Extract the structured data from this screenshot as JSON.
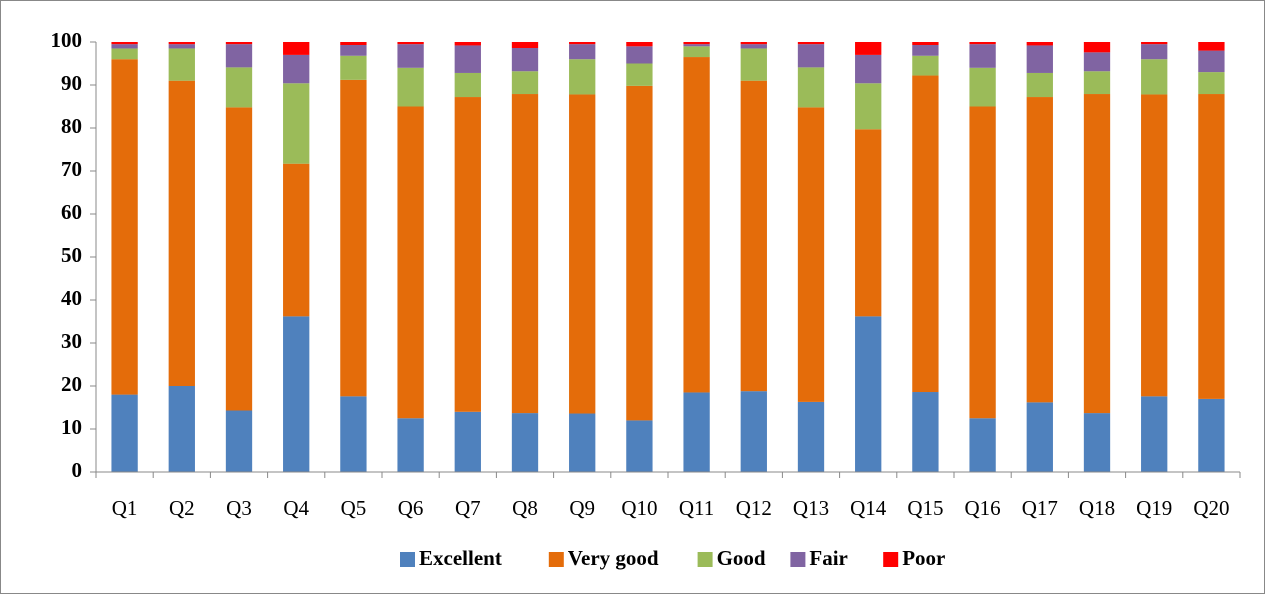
{
  "chart_data": {
    "type": "bar",
    "stacked": true,
    "categories": [
      "Q1",
      "Q2",
      "Q3",
      "Q4",
      "Q5",
      "Q6",
      "Q7",
      "Q8",
      "Q9",
      "Q10",
      "Q11",
      "Q12",
      "Q13",
      "Q14",
      "Q15",
      "Q16",
      "Q17",
      "Q18",
      "Q19",
      "Q20"
    ],
    "series": [
      {
        "name": "Excellent",
        "color": "#4f81bd",
        "values": [
          18,
          20,
          14.3,
          36.2,
          17.6,
          12.5,
          14,
          13.7,
          13.6,
          12,
          18.5,
          18.8,
          16.3,
          36.2,
          18.6,
          12.5,
          16.2,
          13.7,
          17.6,
          17
        ]
      },
      {
        "name": "Very good",
        "color": "#e46c0a",
        "values": [
          78,
          71,
          70.5,
          35.5,
          73.6,
          72.5,
          73.2,
          74.2,
          74.2,
          77.8,
          78,
          72.2,
          68.5,
          43.5,
          73.6,
          72.5,
          71,
          74.2,
          70.2,
          70.9
        ]
      },
      {
        "name": "Good",
        "color": "#9bbb59",
        "values": [
          2.5,
          7.5,
          9.3,
          18.7,
          5.6,
          9,
          5.6,
          5.3,
          8.2,
          5.2,
          2.5,
          7.5,
          9.3,
          10.7,
          4.6,
          9,
          5.6,
          5.3,
          8.2,
          5.1
        ]
      },
      {
        "name": "Fair",
        "color": "#8064a2",
        "values": [
          1,
          1,
          5.4,
          6.6,
          2.5,
          5.5,
          6.4,
          5.4,
          3.5,
          4,
          0.5,
          1,
          5.4,
          6.6,
          2.5,
          5.5,
          6.4,
          4.4,
          3.5,
          5
        ]
      },
      {
        "name": "Poor",
        "color": "#ff0000",
        "values": [
          0.5,
          0.5,
          0.5,
          3,
          0.7,
          0.5,
          0.8,
          1.4,
          0.5,
          1,
          0.5,
          0.5,
          0.5,
          3,
          0.7,
          0.5,
          0.8,
          2.4,
          0.5,
          2
        ]
      }
    ],
    "ylim": [
      0,
      100
    ],
    "yticks": [
      0,
      10,
      20,
      30,
      40,
      50,
      60,
      70,
      80,
      90,
      100
    ],
    "grid": false,
    "legend": "bottom"
  }
}
